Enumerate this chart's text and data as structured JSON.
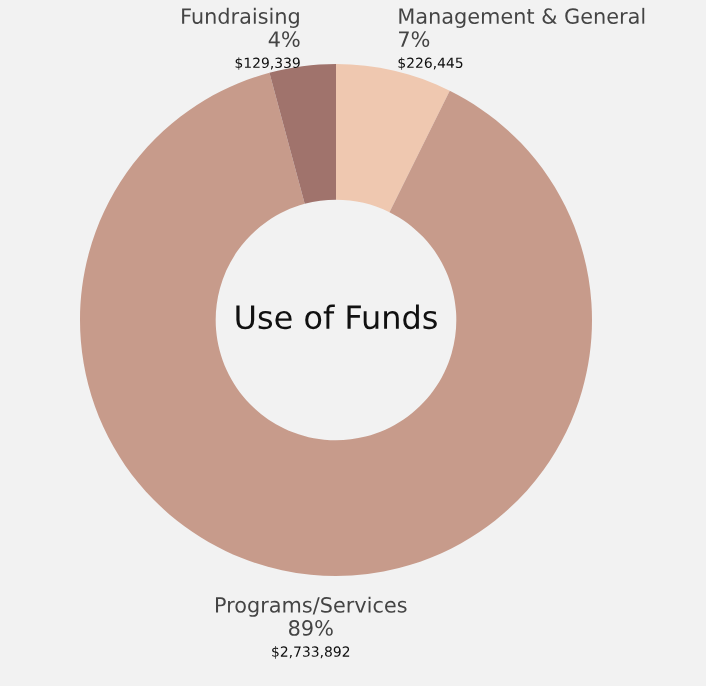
{
  "chart_data": {
    "type": "donut",
    "title": "Use of Funds",
    "categories": [
      "Management & General",
      "Programs/Services",
      "Fundraising"
    ],
    "values": [
      226445,
      2733892,
      129339
    ],
    "value_labels": [
      "7%\n$226,445",
      "89%\n$2,733,892",
      "4%\n$129,339"
    ],
    "colors": [
      "#efc8b0",
      "#c79b8b",
      "#a0736c"
    ]
  }
}
